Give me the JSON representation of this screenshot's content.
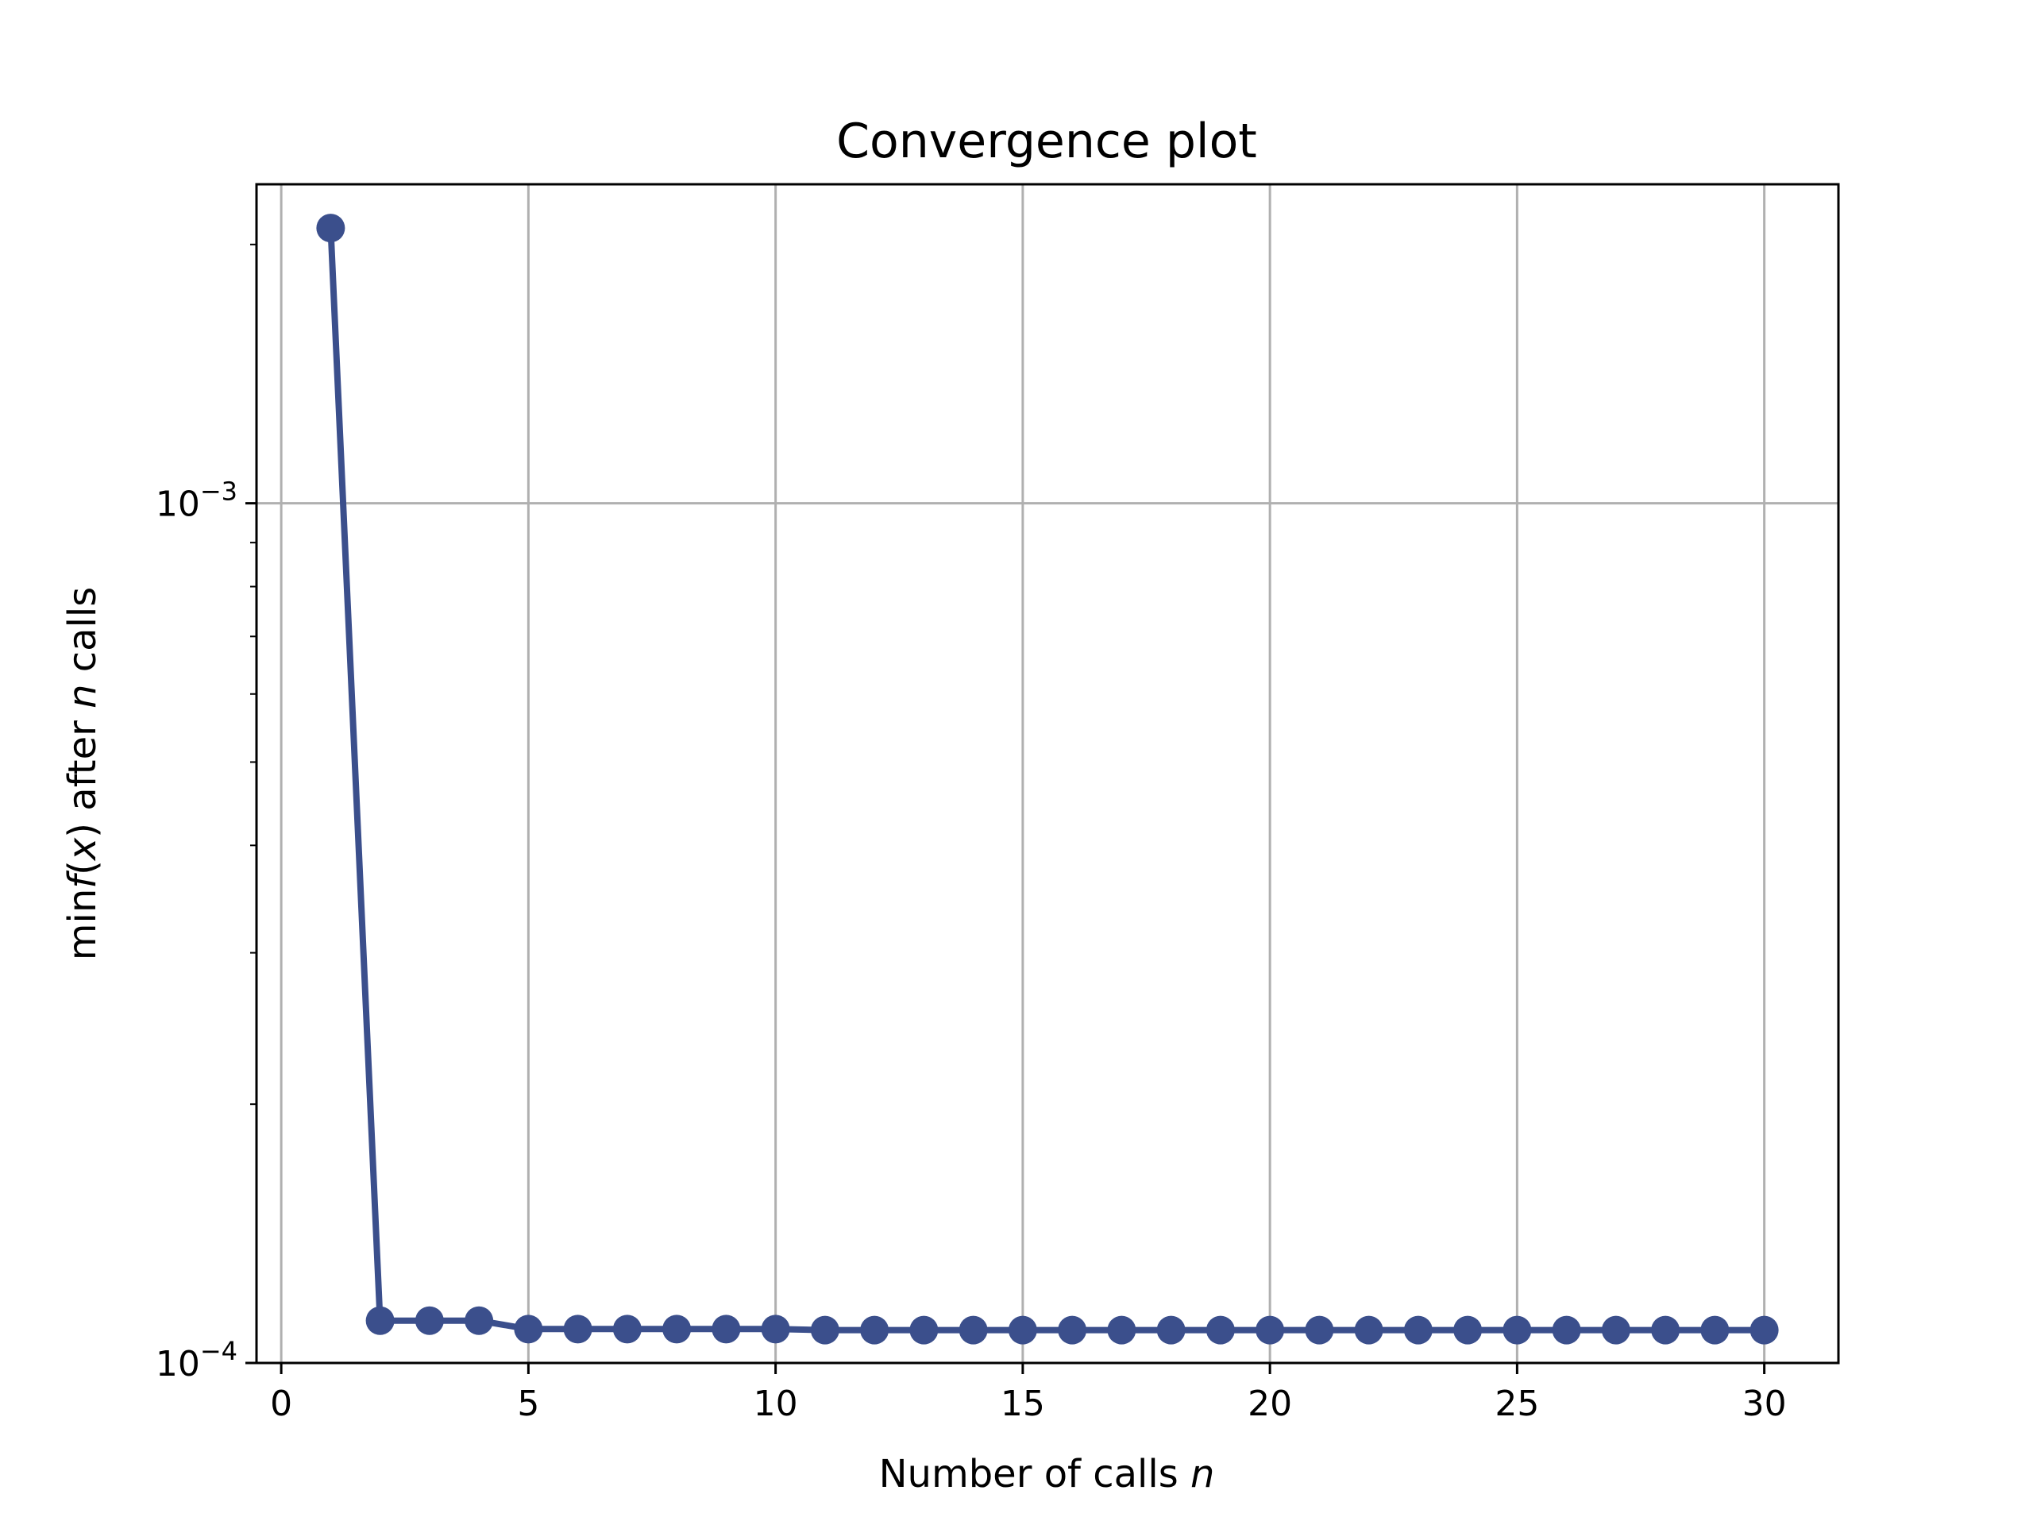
{
  "chart_data": {
    "type": "line",
    "title": "Convergence plot",
    "xlabel_text": "Number of calls ",
    "xlabel_var": "n",
    "ylabel_prefix": "min",
    "ylabel_f": "f",
    "ylabel_open": "(",
    "ylabel_x": "x",
    "ylabel_mid": ") after ",
    "ylabel_n": "n",
    "ylabel_suffix": " calls",
    "xlim": [
      -0.5,
      31.5
    ],
    "ylim": [
      0.0001,
      0.00235
    ],
    "yscale": "log",
    "grid": true,
    "x_ticks": [
      0,
      5,
      10,
      15,
      20,
      25,
      30
    ],
    "y_ticks": [
      {
        "value": 0.0001,
        "base": "10",
        "exp": "−4"
      },
      {
        "value": 0.001,
        "base": "10",
        "exp": "−3"
      }
    ],
    "y_minor_ticks": [
      0.0002,
      0.0003,
      0.0004,
      0.0005,
      0.0006,
      0.0007,
      0.0008,
      0.0009,
      0.002
    ],
    "line_color": "#3b4f8c",
    "series": [
      {
        "x": [
          1,
          2,
          3,
          4,
          5,
          6,
          7,
          8,
          9,
          10,
          11,
          12,
          13,
          14,
          15,
          16,
          17,
          18,
          19,
          20,
          21,
          22,
          23,
          24,
          25,
          26,
          27,
          28,
          29,
          30
        ],
        "y": [
          0.00209,
          0.000112,
          0.000112,
          0.000112,
          0.0001095,
          0.0001095,
          0.0001095,
          0.0001095,
          0.0001095,
          0.0001095,
          0.0001092,
          0.0001092,
          0.0001092,
          0.0001092,
          0.0001092,
          0.0001092,
          0.0001092,
          0.0001092,
          0.0001092,
          0.0001092,
          0.0001092,
          0.0001092,
          0.0001092,
          0.0001092,
          0.0001092,
          0.0001092,
          0.0001092,
          0.0001092,
          0.0001092,
          0.0001092
        ]
      }
    ]
  }
}
